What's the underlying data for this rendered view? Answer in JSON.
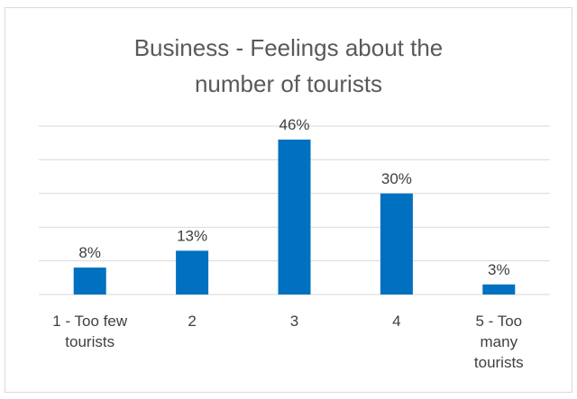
{
  "chart_data": {
    "type": "bar",
    "title_lines": [
      "Business - Feelings about the",
      "number of tourists"
    ],
    "categories": [
      [
        "1 - Too few",
        "tourists"
      ],
      [
        "2"
      ],
      [
        "3"
      ],
      [
        "4"
      ],
      [
        "5 - Too",
        "many",
        "tourists"
      ]
    ],
    "values": [
      8,
      13,
      46,
      30,
      3
    ],
    "data_labels": [
      "8%",
      "13%",
      "46%",
      "30%",
      "3%"
    ],
    "ylim": [
      0,
      50
    ],
    "y_gridlines": [
      0,
      10,
      20,
      30,
      40,
      50
    ],
    "grid": true,
    "bar_color": "#0070C0",
    "legend": "none"
  }
}
